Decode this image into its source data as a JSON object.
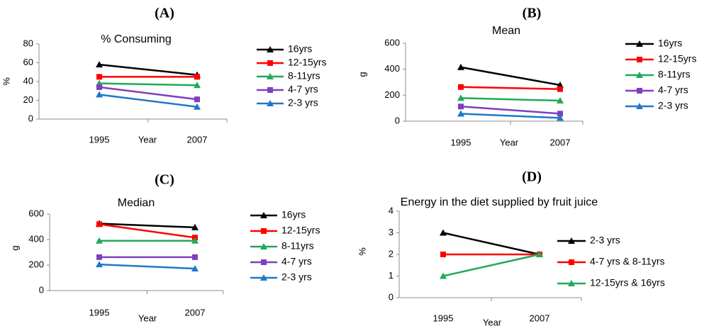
{
  "chart_data": [
    {
      "panel": "(A)",
      "type": "line",
      "title": "% Consuming",
      "xlabel": "Year",
      "ylabel": "%",
      "categories": [
        "1995",
        "2007"
      ],
      "ylim": [
        0,
        80
      ],
      "yticks": [
        0,
        20,
        40,
        60,
        80
      ],
      "series": [
        {
          "name": "16yrs",
          "color": "#000000",
          "marker": "triangle",
          "values": [
            58,
            47
          ]
        },
        {
          "name": "12-15yrs",
          "color": "#ff0000",
          "marker": "square",
          "values": [
            45,
            45
          ]
        },
        {
          "name": "8-11yrs",
          "color": "#1faa59",
          "marker": "triangle",
          "values": [
            38,
            36
          ]
        },
        {
          "name": "4-7 yrs",
          "color": "#7f3fbf",
          "marker": "square",
          "values": [
            34,
            21
          ]
        },
        {
          "name": "2-3 yrs",
          "color": "#1f78c8",
          "marker": "triangle",
          "values": [
            26,
            13
          ]
        }
      ]
    },
    {
      "panel": "(B)",
      "type": "line",
      "title": "Mean",
      "xlabel": "Year",
      "ylabel": "g",
      "categories": [
        "1995",
        "2007"
      ],
      "ylim": [
        0,
        600
      ],
      "yticks": [
        0,
        200,
        400,
        600
      ],
      "series": [
        {
          "name": "16yrs",
          "color": "#000000",
          "marker": "triangle",
          "values": [
            415,
            278
          ]
        },
        {
          "name": "12-15yrs",
          "color": "#ff0000",
          "marker": "square",
          "values": [
            263,
            247
          ]
        },
        {
          "name": "8-11yrs",
          "color": "#1faa59",
          "marker": "triangle",
          "values": [
            178,
            158
          ]
        },
        {
          "name": "4-7 yrs",
          "color": "#7f3fbf",
          "marker": "square",
          "values": [
            113,
            58
          ]
        },
        {
          "name": "2-3 yrs",
          "color": "#1f78c8",
          "marker": "triangle",
          "values": [
            57,
            25
          ]
        }
      ]
    },
    {
      "panel": "(C)",
      "type": "line",
      "title": "Median",
      "xlabel": "Year",
      "ylabel": "g",
      "categories": [
        "1995",
        "2007"
      ],
      "ylim": [
        0,
        600
      ],
      "yticks": [
        0,
        200,
        400,
        600
      ],
      "series": [
        {
          "name": "16yrs",
          "color": "#000000",
          "marker": "triangle",
          "values": [
            525,
            495
          ]
        },
        {
          "name": "12-15yrs",
          "color": "#ff0000",
          "marker": "square",
          "values": [
            520,
            415
          ]
        },
        {
          "name": "8-11yrs",
          "color": "#1faa59",
          "marker": "triangle",
          "values": [
            390,
            390
          ]
        },
        {
          "name": "4-7 yrs",
          "color": "#7f3fbf",
          "marker": "square",
          "values": [
            262,
            262
          ]
        },
        {
          "name": "2-3 yrs",
          "color": "#1f78c8",
          "marker": "triangle",
          "values": [
            205,
            172
          ]
        }
      ]
    },
    {
      "panel": "(D)",
      "type": "line",
      "title": "Energy in the diet supplied by fruit juice",
      "xlabel": "Year",
      "ylabel": "%",
      "categories": [
        "1995",
        "2007"
      ],
      "ylim": [
        0,
        4
      ],
      "yticks": [
        0,
        1,
        2,
        3,
        4
      ],
      "series": [
        {
          "name": "2-3 yrs",
          "color": "#000000",
          "marker": "triangle",
          "values": [
            3,
            2
          ]
        },
        {
          "name": "4-7 yrs & 8-11yrs",
          "color": "#ff0000",
          "marker": "square",
          "values": [
            2,
            2
          ]
        },
        {
          "name": "12-15yrs & 16yrs",
          "color": "#1faa59",
          "marker": "triangle",
          "values": [
            1,
            2
          ]
        }
      ]
    }
  ]
}
